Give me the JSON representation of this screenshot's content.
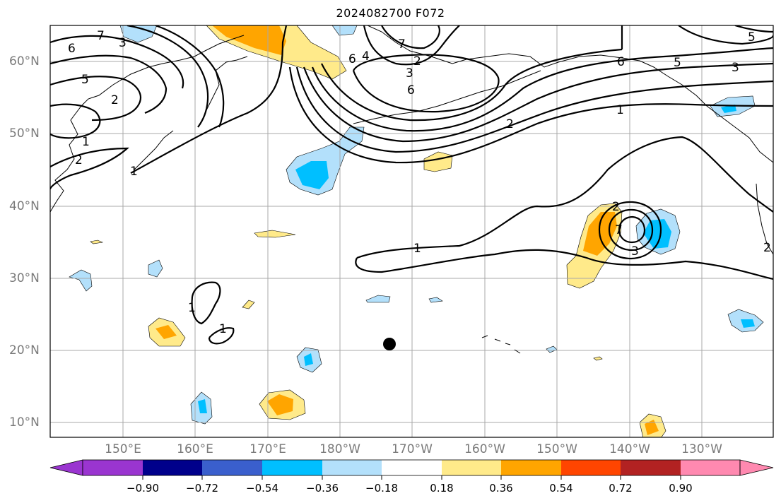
{
  "title": "2024082700 F072",
  "latitude_labels": [
    "60°N",
    "50°N",
    "40°N",
    "30°N",
    "20°N",
    "10°N"
  ],
  "longitude_labels": [
    "150°E",
    "160°E",
    "170°E",
    "180°W",
    "170°W",
    "160°W",
    "150°W",
    "140°W",
    "130°W"
  ],
  "colorbar": {
    "colors": [
      "#9a35d0",
      "#00008b",
      "#3a5fcd",
      "#00bfff",
      "#b3e0fb",
      "#ffffff",
      "#ffea8a",
      "#ffa500",
      "#ff4500",
      "#b22222",
      "#ff89b0"
    ],
    "tick_labels": [
      "−0.90",
      "−0.72",
      "−0.54",
      "−0.36",
      "−0.18",
      "0.18",
      "0.36",
      "0.54",
      "0.72",
      "0.90"
    ]
  },
  "contour_labels": {
    "north_west": [
      "6",
      "7",
      "3",
      "5",
      "2",
      "1",
      "2",
      "1"
    ],
    "north_central": [
      "6",
      "4",
      "2",
      "3",
      "6",
      "2",
      "7"
    ],
    "north_east": [
      "6",
      "5",
      "3",
      "5",
      "1",
      "2"
    ],
    "central": [
      "1"
    ],
    "east_vortex": [
      "7",
      "3",
      "2"
    ],
    "west_small": [
      "1",
      "1"
    ]
  },
  "marker": "black-dot"
}
